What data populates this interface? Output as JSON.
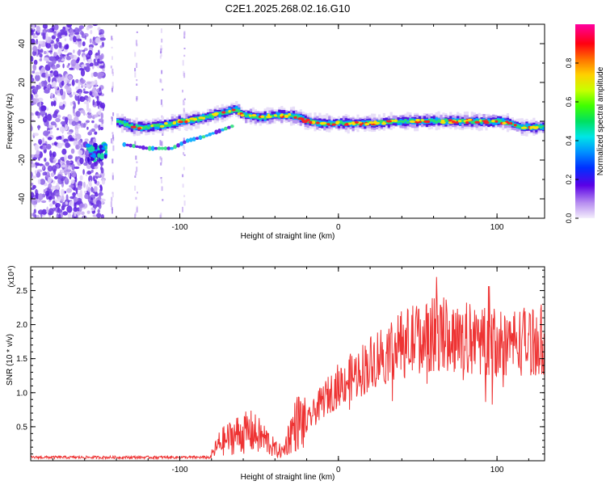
{
  "title": "C2E1.2025.268.02.16.G10",
  "chart_data": [
    {
      "type": "heatmap",
      "xlabel": "Height of straight line (km)",
      "ylabel": "Frequency (Hz)",
      "xlim": [
        -194,
        130
      ],
      "ylim": [
        -50,
        50
      ],
      "xticks": [
        -100,
        0,
        100
      ],
      "yticks": [
        -40,
        -20,
        0,
        20,
        40
      ],
      "colorbar": {
        "label": "Normalized spectral amplitude",
        "range": [
          0,
          1
        ],
        "ticks": [
          "0.0",
          "0.2",
          "0.4",
          "0.6",
          "0.8"
        ]
      },
      "ridge": {
        "x": [
          -155,
          -148,
          -140,
          -130,
          -120,
          -110,
          -100,
          -90,
          -80,
          -70,
          -65,
          -60,
          -50,
          -40,
          -30,
          -25,
          -20,
          -10,
          0,
          20,
          40,
          60,
          80,
          100,
          108,
          115,
          130
        ],
        "freq": [
          -17,
          -15,
          0,
          -3,
          -3,
          -2,
          0,
          1,
          3,
          5,
          6,
          3,
          2,
          3,
          3,
          2,
          0,
          -1,
          -1,
          -1,
          0,
          0,
          0,
          0,
          -1,
          -3,
          -3
        ]
      },
      "secondary_ridge": {
        "x": [
          -135,
          -120,
          -105,
          -95,
          -85,
          -75,
          -65
        ],
        "freq": [
          -12,
          -14,
          -14,
          -10,
          -8,
          -5,
          -2
        ]
      }
    },
    {
      "type": "line",
      "xlabel": "Height of straight line (km)",
      "ylabel": "SNR (10 * v/v)",
      "y_multiplier": "(x10⁴)",
      "xlim": [
        -194,
        130
      ],
      "ylim": [
        0,
        2.85
      ],
      "xticks": [
        -100,
        0,
        100
      ],
      "yticks": [
        0.5,
        1.0,
        1.5,
        2.0,
        2.5
      ],
      "color": "#ee3333",
      "envelope": {
        "x": [
          -194,
          -150,
          -120,
          -100,
          -80,
          -75,
          -65,
          -55,
          -45,
          -40,
          -35,
          -30,
          -25,
          -20,
          -10,
          0,
          10,
          20,
          30,
          40,
          50,
          60,
          70,
          80,
          90,
          100,
          110,
          120,
          130
        ],
        "y": [
          0.03,
          0.04,
          0.06,
          0.08,
          0.1,
          0.3,
          0.45,
          0.5,
          0.35,
          0.2,
          0.15,
          0.5,
          0.7,
          0.6,
          0.95,
          1.2,
          1.35,
          1.55,
          1.75,
          1.85,
          1.95,
          2.0,
          2.0,
          1.95,
          1.9,
          1.9,
          1.9,
          1.9,
          1.95
        ]
      }
    }
  ]
}
